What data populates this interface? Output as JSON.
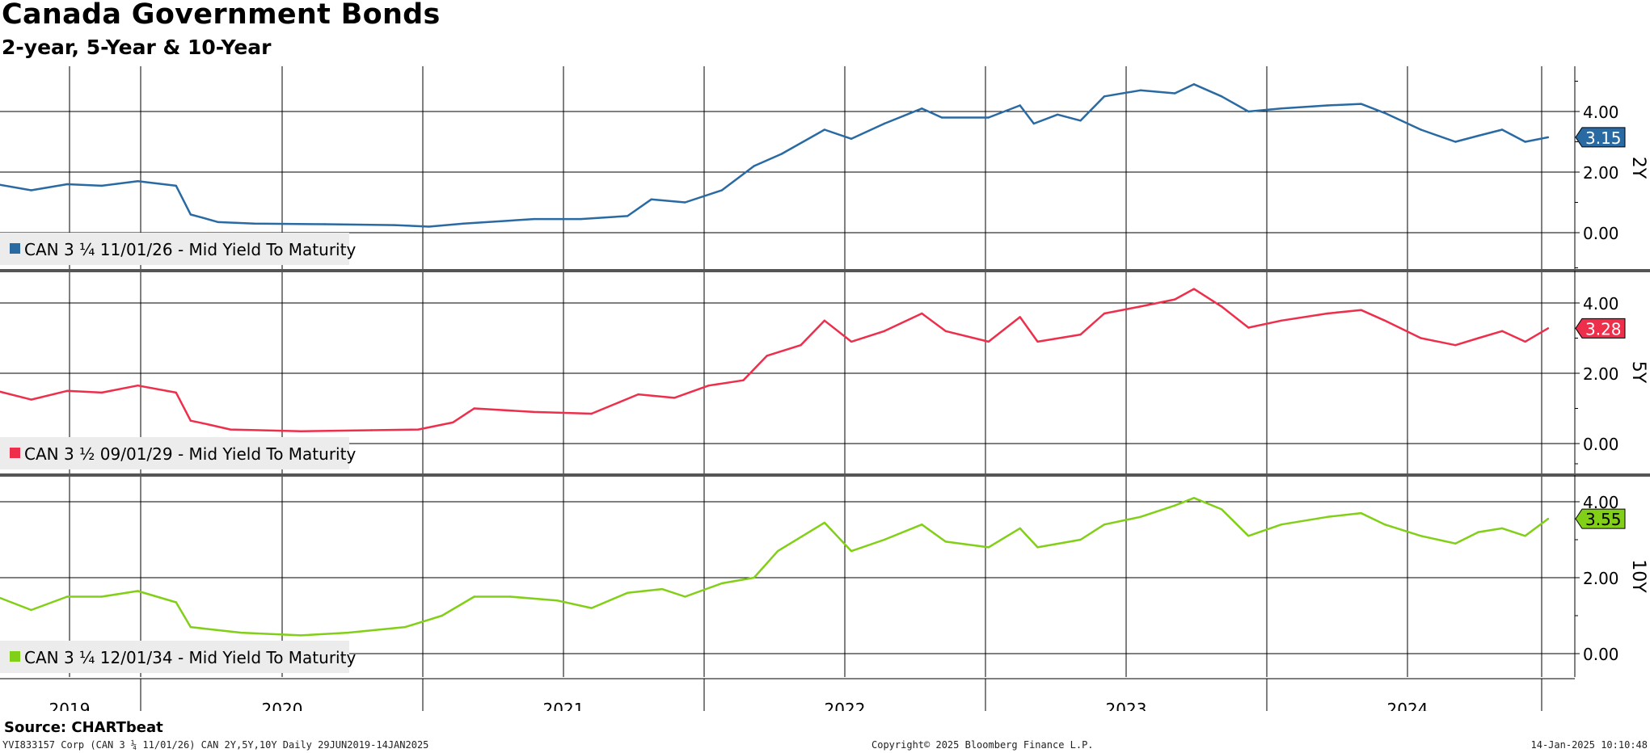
{
  "title": "Canada Government Bonds",
  "subtitle": "2-year, 5-Year & 10-Year",
  "source": "Source: CHARTbeat",
  "footer": {
    "left": "YVI833157 Corp (CAN 3 ¼ 11/01/26) CAN 2Y,5Y,10Y  Daily 29JUN2019-14JAN2025",
    "center": "Copyright© 2025 Bloomberg Finance L.P.",
    "right": "14-Jan-2025 10:10:48"
  },
  "chart_data": {
    "type": "line",
    "x_labels": [
      "2019",
      "2020",
      "2021",
      "2022",
      "2023",
      "2024"
    ],
    "x_range": [
      "2019-06-29",
      "2025-01-14"
    ],
    "grid": true,
    "panels": [
      {
        "name": "CAN 3 ¼ 11/01/26 - Mid Yield To Maturity",
        "axis_label": "2Y",
        "color": "#2a6aa3",
        "last_value": "3.15",
        "y_ticks": [
          "0.00",
          "2.00",
          "4.00"
        ],
        "ylim": [
          -1.0,
          5.6
        ],
        "series": [
          [
            "2019-07-01",
            1.6
          ],
          [
            "2019-08-15",
            1.4
          ],
          [
            "2019-10-01",
            1.6
          ],
          [
            "2019-11-15",
            1.55
          ],
          [
            "2020-01-01",
            1.7
          ],
          [
            "2020-02-20",
            1.55
          ],
          [
            "2020-03-10",
            0.6
          ],
          [
            "2020-03-25",
            0.5
          ],
          [
            "2020-04-15",
            0.35
          ],
          [
            "2020-06-01",
            0.3
          ],
          [
            "2020-09-01",
            0.28
          ],
          [
            "2020-12-01",
            0.25
          ],
          [
            "2021-01-15",
            0.2
          ],
          [
            "2021-03-01",
            0.3
          ],
          [
            "2021-06-01",
            0.45
          ],
          [
            "2021-08-01",
            0.45
          ],
          [
            "2021-10-01",
            0.55
          ],
          [
            "2021-11-01",
            1.1
          ],
          [
            "2021-12-15",
            1.0
          ],
          [
            "2022-02-01",
            1.4
          ],
          [
            "2022-03-15",
            2.2
          ],
          [
            "2022-04-20",
            2.6
          ],
          [
            "2022-06-15",
            3.4
          ],
          [
            "2022-07-20",
            3.1
          ],
          [
            "2022-09-01",
            3.6
          ],
          [
            "2022-10-20",
            4.1
          ],
          [
            "2022-11-15",
            3.8
          ],
          [
            "2023-01-15",
            3.8
          ],
          [
            "2023-02-25",
            4.2
          ],
          [
            "2023-03-15",
            3.6
          ],
          [
            "2023-04-15",
            3.9
          ],
          [
            "2023-05-15",
            3.7
          ],
          [
            "2023-06-15",
            4.5
          ],
          [
            "2023-08-01",
            4.7
          ],
          [
            "2023-09-15",
            4.6
          ],
          [
            "2023-10-10",
            4.9
          ],
          [
            "2023-11-15",
            4.5
          ],
          [
            "2023-12-20",
            4.0
          ],
          [
            "2024-02-01",
            4.1
          ],
          [
            "2024-04-01",
            4.2
          ],
          [
            "2024-05-15",
            4.25
          ],
          [
            "2024-06-15",
            3.95
          ],
          [
            "2024-08-01",
            3.4
          ],
          [
            "2024-09-15",
            3.0
          ],
          [
            "2024-10-15",
            3.2
          ],
          [
            "2024-11-15",
            3.4
          ],
          [
            "2024-12-15",
            3.0
          ],
          [
            "2025-01-14",
            3.15
          ]
        ]
      },
      {
        "name": "CAN 3 ½ 09/01/29 - Mid Yield To Maturity",
        "axis_label": "5Y",
        "color": "#ee2f4c",
        "last_value": "3.28",
        "y_ticks": [
          "0.00",
          "2.00",
          "4.00"
        ],
        "ylim": [
          -0.7,
          5.2
        ],
        "series": [
          [
            "2019-07-01",
            1.5
          ],
          [
            "2019-08-15",
            1.25
          ],
          [
            "2019-10-01",
            1.5
          ],
          [
            "2019-11-15",
            1.45
          ],
          [
            "2020-01-01",
            1.65
          ],
          [
            "2020-02-20",
            1.45
          ],
          [
            "2020-03-10",
            0.65
          ],
          [
            "2020-04-01",
            0.55
          ],
          [
            "2020-05-01",
            0.4
          ],
          [
            "2020-08-01",
            0.35
          ],
          [
            "2020-11-01",
            0.38
          ],
          [
            "2021-01-01",
            0.4
          ],
          [
            "2021-02-15",
            0.6
          ],
          [
            "2021-03-15",
            1.0
          ],
          [
            "2021-06-01",
            0.9
          ],
          [
            "2021-08-15",
            0.85
          ],
          [
            "2021-10-15",
            1.4
          ],
          [
            "2021-12-01",
            1.3
          ],
          [
            "2022-01-15",
            1.65
          ],
          [
            "2022-03-01",
            1.8
          ],
          [
            "2022-04-01",
            2.5
          ],
          [
            "2022-05-15",
            2.8
          ],
          [
            "2022-06-15",
            3.5
          ],
          [
            "2022-07-20",
            2.9
          ],
          [
            "2022-09-01",
            3.2
          ],
          [
            "2022-10-20",
            3.7
          ],
          [
            "2022-11-20",
            3.2
          ],
          [
            "2023-01-15",
            2.9
          ],
          [
            "2023-02-25",
            3.6
          ],
          [
            "2023-03-20",
            2.9
          ],
          [
            "2023-05-15",
            3.1
          ],
          [
            "2023-06-15",
            3.7
          ],
          [
            "2023-08-01",
            3.9
          ],
          [
            "2023-09-15",
            4.1
          ],
          [
            "2023-10-10",
            4.4
          ],
          [
            "2023-11-15",
            3.9
          ],
          [
            "2023-12-20",
            3.3
          ],
          [
            "2024-02-01",
            3.5
          ],
          [
            "2024-04-01",
            3.7
          ],
          [
            "2024-05-15",
            3.8
          ],
          [
            "2024-06-15",
            3.5
          ],
          [
            "2024-08-01",
            3.0
          ],
          [
            "2024-09-15",
            2.8
          ],
          [
            "2024-10-15",
            3.0
          ],
          [
            "2024-11-15",
            3.2
          ],
          [
            "2024-12-15",
            2.9
          ],
          [
            "2025-01-14",
            3.28
          ]
        ]
      },
      {
        "name": "CAN 3 ¼ 12/01/34 - Mid Yield To Maturity",
        "axis_label": "10Y",
        "color": "#82cf17",
        "last_value": "3.55",
        "y_ticks": [
          "0.00",
          "2.00",
          "4.00"
        ],
        "ylim": [
          -0.65,
          4.5
        ],
        "series": [
          [
            "2019-07-01",
            1.5
          ],
          [
            "2019-08-15",
            1.15
          ],
          [
            "2019-10-01",
            1.5
          ],
          [
            "2019-11-15",
            1.5
          ],
          [
            "2020-01-01",
            1.65
          ],
          [
            "2020-02-20",
            1.35
          ],
          [
            "2020-03-10",
            0.7
          ],
          [
            "2020-04-01",
            0.65
          ],
          [
            "2020-05-15",
            0.55
          ],
          [
            "2020-08-01",
            0.48
          ],
          [
            "2020-10-01",
            0.55
          ],
          [
            "2020-12-15",
            0.7
          ],
          [
            "2021-02-01",
            1.0
          ],
          [
            "2021-03-15",
            1.5
          ],
          [
            "2021-05-01",
            1.5
          ],
          [
            "2021-07-01",
            1.4
          ],
          [
            "2021-08-15",
            1.2
          ],
          [
            "2021-10-01",
            1.6
          ],
          [
            "2021-11-15",
            1.7
          ],
          [
            "2021-12-15",
            1.5
          ],
          [
            "2022-02-01",
            1.85
          ],
          [
            "2022-03-15",
            2.0
          ],
          [
            "2022-04-15",
            2.7
          ],
          [
            "2022-06-15",
            3.45
          ],
          [
            "2022-07-20",
            2.7
          ],
          [
            "2022-09-01",
            3.0
          ],
          [
            "2022-10-20",
            3.4
          ],
          [
            "2022-11-20",
            2.95
          ],
          [
            "2023-01-15",
            2.8
          ],
          [
            "2023-02-25",
            3.3
          ],
          [
            "2023-03-20",
            2.8
          ],
          [
            "2023-05-15",
            3.0
          ],
          [
            "2023-06-15",
            3.4
          ],
          [
            "2023-08-01",
            3.6
          ],
          [
            "2023-09-15",
            3.9
          ],
          [
            "2023-10-10",
            4.1
          ],
          [
            "2023-11-15",
            3.8
          ],
          [
            "2023-12-20",
            3.1
          ],
          [
            "2024-02-01",
            3.4
          ],
          [
            "2024-04-01",
            3.6
          ],
          [
            "2024-05-15",
            3.7
          ],
          [
            "2024-06-15",
            3.4
          ],
          [
            "2024-08-01",
            3.1
          ],
          [
            "2024-09-15",
            2.9
          ],
          [
            "2024-10-15",
            3.2
          ],
          [
            "2024-11-15",
            3.3
          ],
          [
            "2024-12-15",
            3.1
          ],
          [
            "2025-01-14",
            3.55
          ]
        ]
      }
    ]
  }
}
